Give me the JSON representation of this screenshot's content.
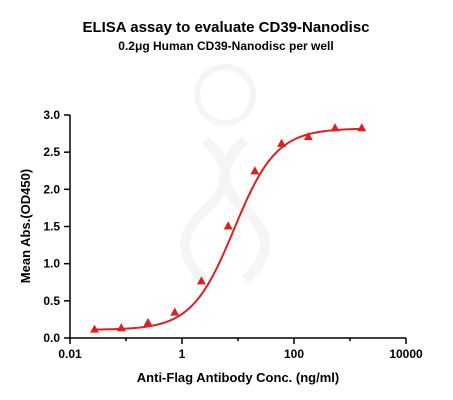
{
  "chart_data": {
    "type": "line",
    "title": "ELISA assay to evaluate CD39-Nanodisc",
    "subtitle": "0.2μg Human CD39-Nanodisc per well",
    "xlabel": "Anti-Flag Antibody Conc. (ng/ml)",
    "ylabel": "Mean Abs.(OD450)",
    "x_scale": "log",
    "xlim": [
      0.01,
      10000
    ],
    "ylim": [
      0,
      3.0
    ],
    "x_ticks": [
      "0.01",
      "1",
      "100",
      "10000"
    ],
    "y_ticks": [
      "0.0",
      "0.5",
      "1.0",
      "1.5",
      "2.0",
      "2.5",
      "3.0"
    ],
    "grid": false,
    "series": [
      {
        "marker": "triangle",
        "color": "#e02020",
        "x": [
          0.0274,
          0.0823,
          0.247,
          0.741,
          2.22,
          6.67,
          20,
          60,
          180,
          540,
          1620
        ],
        "y": [
          0.12,
          0.14,
          0.21,
          0.35,
          0.77,
          1.51,
          2.25,
          2.62,
          2.71,
          2.83,
          2.83
        ]
      }
    ],
    "fit_curve": {
      "bottom": 0.11,
      "top": 2.82,
      "ec50": 8.5,
      "hill": 1.15
    }
  }
}
